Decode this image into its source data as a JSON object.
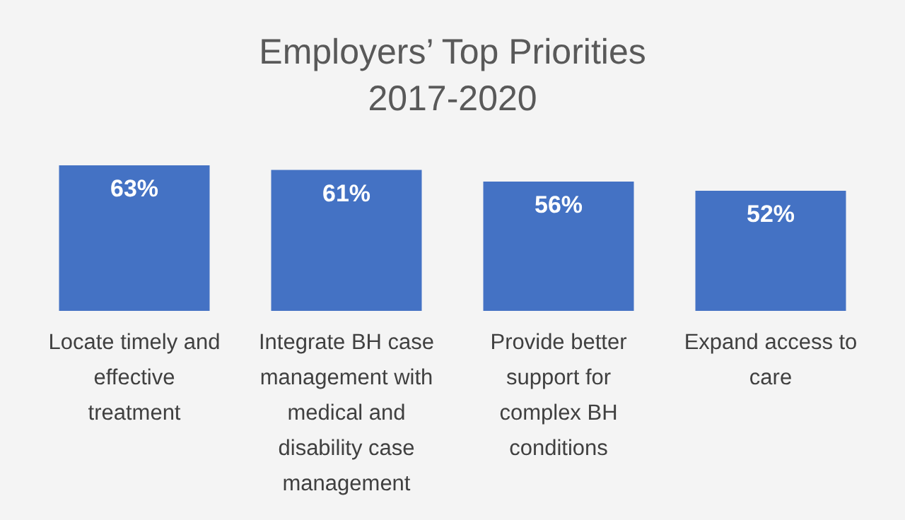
{
  "chart_data": {
    "type": "bar",
    "title": "Employers’ Top Priorities\n2017-2020",
    "categories": [
      "Locate timely and effective treatment",
      "Integrate BH case management with medical and disability case management",
      "Provide better support for complex BH conditions",
      "Expand access to care"
    ],
    "values": [
      63,
      61,
      56,
      52
    ],
    "color": "#4472c4",
    "data_labels": true,
    "value_labels": [
      "63%",
      "61%",
      "56%",
      "52%"
    ]
  }
}
